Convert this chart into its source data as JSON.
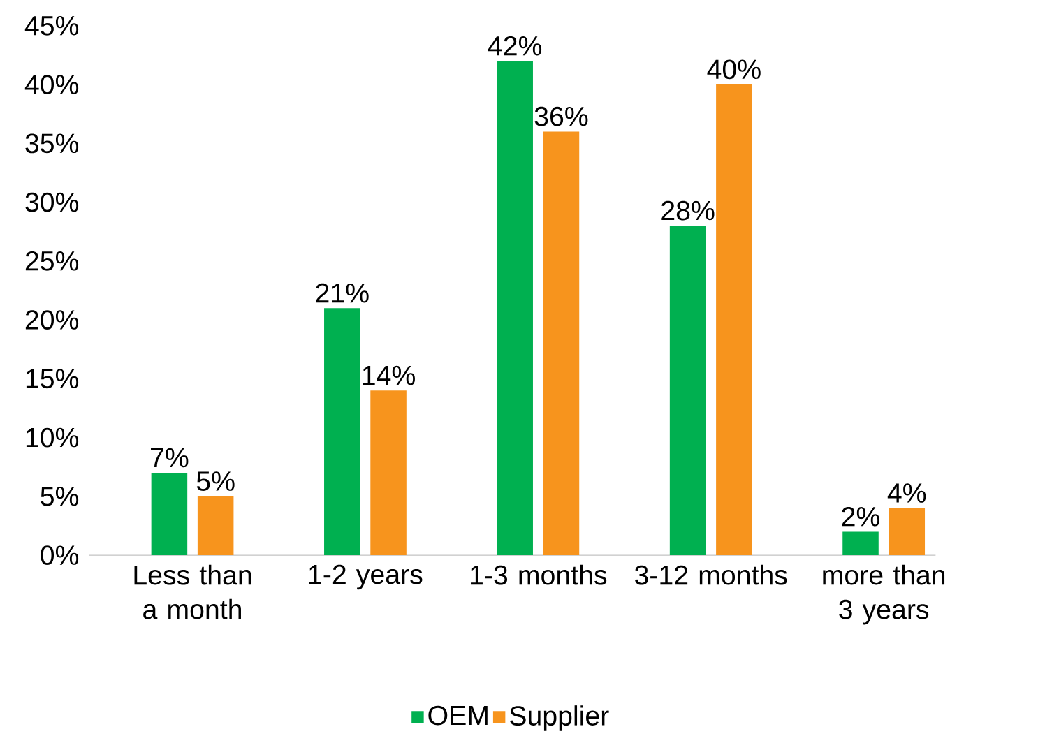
{
  "chart_data": {
    "type": "bar",
    "categories": [
      "Less than a month",
      "1-2 years",
      "1-3 months",
      "3-12 months",
      "more than 3 years"
    ],
    "series": [
      {
        "name": "OEM",
        "color": "#00b050",
        "values": [
          7,
          21,
          42,
          28,
          2
        ],
        "value_labels": [
          "7%",
          "21%",
          "42%",
          "28%",
          "2%"
        ]
      },
      {
        "name": "Supplier",
        "color": "#f7941d",
        "values": [
          5,
          14,
          36,
          40,
          4
        ],
        "value_labels": [
          "5%",
          "14%",
          "36%",
          "40%",
          "4%"
        ]
      }
    ],
    "ylim": [
      0,
      45
    ],
    "yticks": [
      {
        "value": 0,
        "label": "0%"
      },
      {
        "value": 5,
        "label": "5%"
      },
      {
        "value": 10,
        "label": "10%"
      },
      {
        "value": 15,
        "label": "15%"
      },
      {
        "value": 20,
        "label": "20%"
      },
      {
        "value": 25,
        "label": "25%"
      },
      {
        "value": 30,
        "label": "30%"
      },
      {
        "value": 35,
        "label": "35%"
      },
      {
        "value": 40,
        "label": "40%"
      },
      {
        "value": 45,
        "label": "45%"
      }
    ],
    "legend": "bottom"
  }
}
